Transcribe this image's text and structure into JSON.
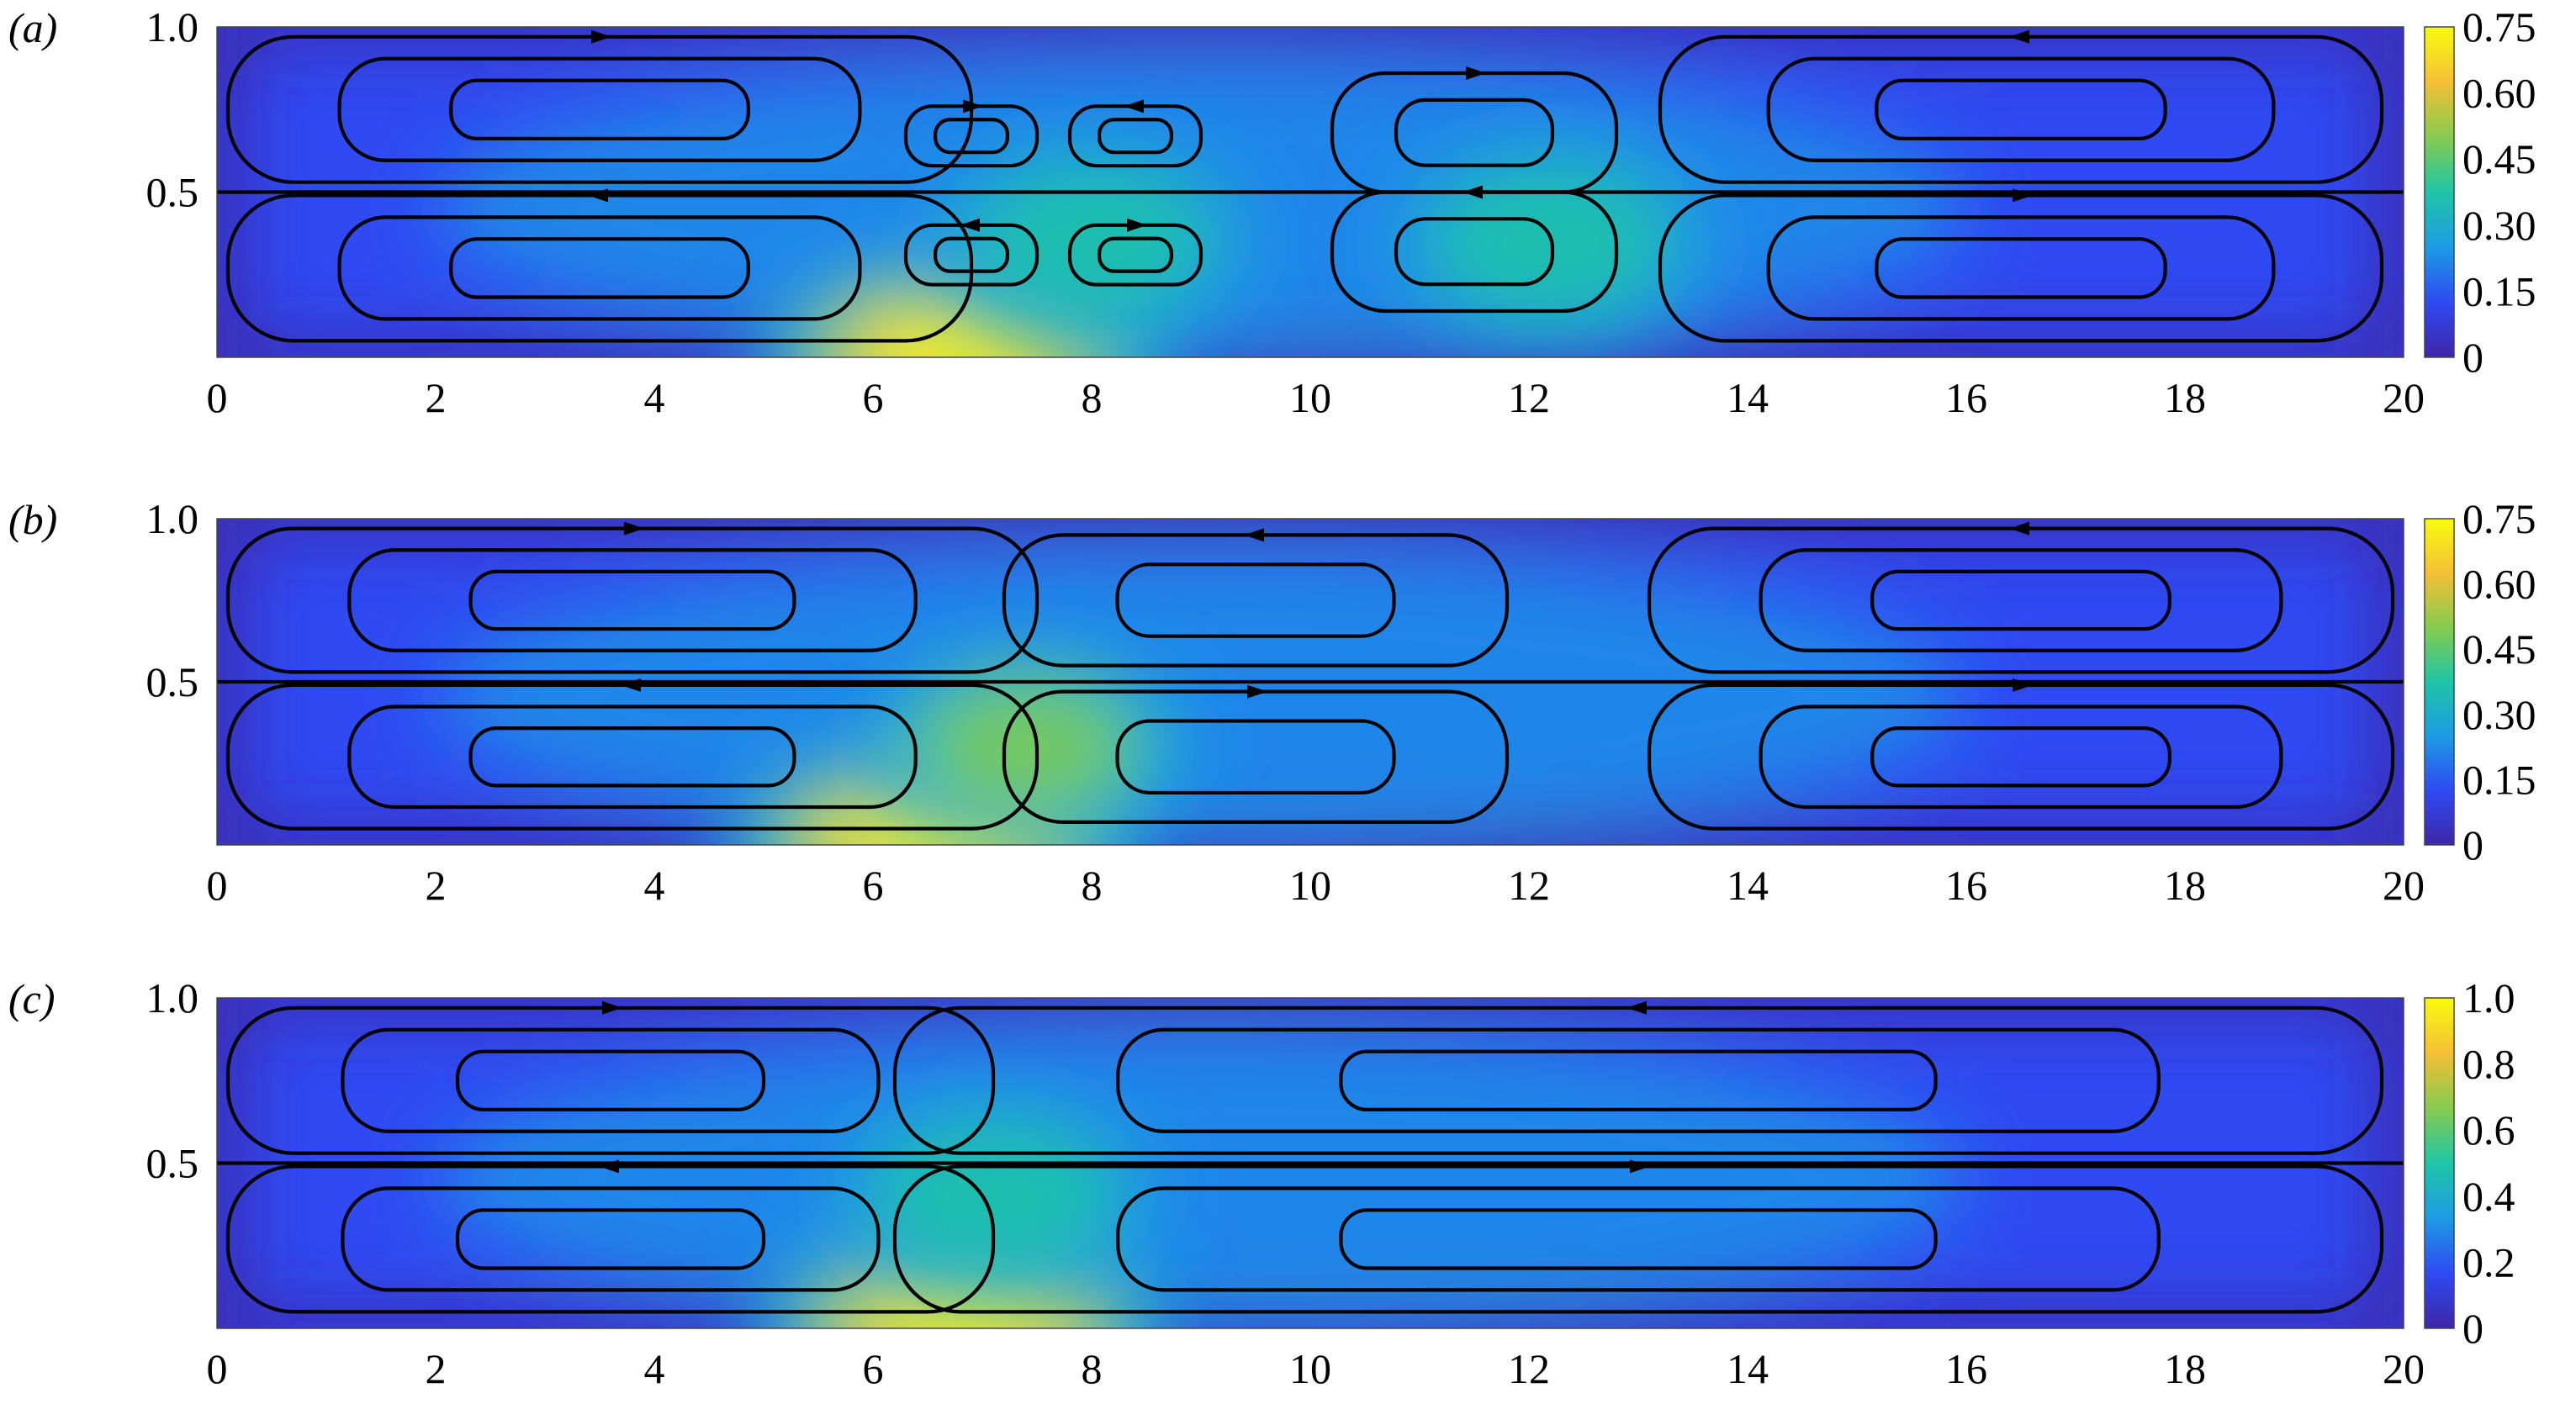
{
  "chart_data": [
    {
      "type": "heatmap",
      "panel_label": "(a)",
      "x_ticks": [
        "0",
        "2",
        "4",
        "6",
        "8",
        "10",
        "12",
        "14",
        "16",
        "18",
        "20"
      ],
      "y_ticks": [
        "0.5",
        "1.0"
      ],
      "xlim": [
        0,
        20
      ],
      "ylim": [
        0,
        1
      ],
      "colorbar": {
        "ticks": [
          "0",
          "0.15",
          "0.30",
          "0.45",
          "0.60",
          "0.75"
        ],
        "range": [
          0,
          0.75
        ]
      },
      "colormap": [
        "#3e26a8",
        "#2f4af2",
        "#1e9be5",
        "#1fc5a6",
        "#86cb4f",
        "#f5bf36",
        "#f9fb0e"
      ],
      "hot_spots": [
        {
          "x": 6.8,
          "y": 0.0,
          "value": 0.75
        },
        {
          "x": 8.0,
          "y": 0.35,
          "value": 0.42
        },
        {
          "x": 12.2,
          "y": 0.35,
          "value": 0.33
        }
      ],
      "vortices": [
        {
          "x": 3.5,
          "y": 0.75,
          "rx": 3.4,
          "ry": 0.22,
          "sense": "cw"
        },
        {
          "x": 3.5,
          "y": 0.27,
          "rx": 3.4,
          "ry": 0.22,
          "sense": "ccw"
        },
        {
          "x": 6.9,
          "y": 0.67,
          "rx": 0.6,
          "ry": 0.09,
          "sense": "cw"
        },
        {
          "x": 8.4,
          "y": 0.67,
          "rx": 0.6,
          "ry": 0.09,
          "sense": "ccw"
        },
        {
          "x": 6.9,
          "y": 0.31,
          "rx": 0.6,
          "ry": 0.09,
          "sense": "ccw"
        },
        {
          "x": 8.4,
          "y": 0.31,
          "rx": 0.6,
          "ry": 0.09,
          "sense": "cw"
        },
        {
          "x": 11.5,
          "y": 0.68,
          "rx": 1.3,
          "ry": 0.18,
          "sense": "cw"
        },
        {
          "x": 11.5,
          "y": 0.32,
          "rx": 1.3,
          "ry": 0.18,
          "sense": "ccw"
        },
        {
          "x": 16.5,
          "y": 0.75,
          "rx": 3.3,
          "ry": 0.22,
          "sense": "ccw"
        },
        {
          "x": 16.5,
          "y": 0.27,
          "rx": 3.3,
          "ry": 0.22,
          "sense": "cw"
        }
      ]
    },
    {
      "type": "heatmap",
      "panel_label": "(b)",
      "x_ticks": [
        "0",
        "2",
        "4",
        "6",
        "8",
        "10",
        "12",
        "14",
        "16",
        "18",
        "20"
      ],
      "y_ticks": [
        "0.5",
        "1.0"
      ],
      "xlim": [
        0,
        20
      ],
      "ylim": [
        0,
        1
      ],
      "colorbar": {
        "ticks": [
          "0",
          "0.15",
          "0.30",
          "0.45",
          "0.60",
          "0.75"
        ],
        "range": [
          0,
          0.75
        ]
      },
      "colormap": [
        "#3e26a8",
        "#2f4af2",
        "#1e9be5",
        "#1fc5a6",
        "#86cb4f",
        "#f5bf36",
        "#f9fb0e"
      ],
      "hot_spots": [
        {
          "x": 6.5,
          "y": 0.0,
          "value": 0.75
        },
        {
          "x": 7.4,
          "y": 0.3,
          "value": 0.45
        }
      ],
      "vortices": [
        {
          "x": 3.8,
          "y": 0.75,
          "rx": 3.7,
          "ry": 0.22,
          "sense": "cw"
        },
        {
          "x": 3.8,
          "y": 0.27,
          "rx": 3.7,
          "ry": 0.22,
          "sense": "ccw"
        },
        {
          "x": 9.5,
          "y": 0.75,
          "rx": 2.3,
          "ry": 0.2,
          "sense": "ccw"
        },
        {
          "x": 9.5,
          "y": 0.27,
          "rx": 2.3,
          "ry": 0.2,
          "sense": "cw"
        },
        {
          "x": 16.5,
          "y": 0.75,
          "rx": 3.4,
          "ry": 0.22,
          "sense": "ccw"
        },
        {
          "x": 16.5,
          "y": 0.27,
          "rx": 3.4,
          "ry": 0.22,
          "sense": "cw"
        }
      ]
    },
    {
      "type": "heatmap",
      "panel_label": "(c)",
      "x_ticks": [
        "0",
        "2",
        "4",
        "6",
        "8",
        "10",
        "12",
        "14",
        "16",
        "18",
        "20"
      ],
      "y_ticks": [
        "0.5",
        "1.0"
      ],
      "xlim": [
        0,
        20
      ],
      "ylim": [
        0,
        1
      ],
      "colorbar": {
        "ticks": [
          "0",
          "0.2",
          "0.4",
          "0.6",
          "0.8",
          "1.0"
        ],
        "range": [
          0,
          1.0
        ]
      },
      "colormap": [
        "#3e26a8",
        "#2f4af2",
        "#1e9be5",
        "#1fc5a6",
        "#86cb4f",
        "#f5bf36",
        "#f9fb0e"
      ],
      "hot_spots": [
        {
          "x": 6.8,
          "y": 0.0,
          "value": 1.0
        },
        {
          "x": 7.1,
          "y": 0.4,
          "value": 0.55
        }
      ],
      "vortices": [
        {
          "x": 3.6,
          "y": 0.75,
          "rx": 3.5,
          "ry": 0.22,
          "sense": "cw"
        },
        {
          "x": 3.6,
          "y": 0.27,
          "rx": 3.5,
          "ry": 0.22,
          "sense": "ccw"
        },
        {
          "x": 13.0,
          "y": 0.75,
          "rx": 6.8,
          "ry": 0.22,
          "sense": "ccw"
        },
        {
          "x": 13.0,
          "y": 0.27,
          "rx": 6.8,
          "ry": 0.22,
          "sense": "cw"
        }
      ]
    }
  ]
}
